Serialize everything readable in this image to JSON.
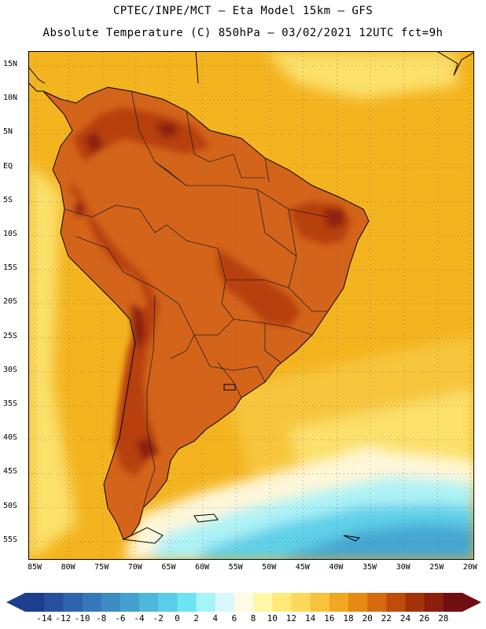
{
  "title": {
    "line1": "CPTEC/INPE/MCT –  Eta Model 15km – GFS",
    "line2": "Absolute Temperature (C) 850hPa – 03/02/2021 12UTC fct=9h"
  },
  "axes": {
    "lat_labels": [
      "15N",
      "10N",
      "5N",
      "EQ",
      "5S",
      "10S",
      "15S",
      "20S",
      "25S",
      "30S",
      "35S",
      "40S",
      "45S",
      "50S",
      "55S"
    ],
    "lon_labels": [
      "85W",
      "80W",
      "75W",
      "70W",
      "65W",
      "60W",
      "55W",
      "50W",
      "45W",
      "40W",
      "35W",
      "30W",
      "25W",
      "20W"
    ]
  },
  "colorbar": {
    "labels": [
      "-14",
      "-12",
      "-10",
      "-8",
      "-6",
      "-4",
      "-2",
      "0",
      "2",
      "4",
      "6",
      "8",
      "10",
      "12",
      "14",
      "16",
      "18",
      "20",
      "22",
      "24",
      "26",
      "28"
    ],
    "colors": [
      "#1e3f8f",
      "#27519f",
      "#2e63ad",
      "#3777b9",
      "#3d8bc4",
      "#45a0d0",
      "#4fb7dc",
      "#5acde8",
      "#6ee3f2",
      "#a6f3f8",
      "#d9f8fb",
      "#fffbe4",
      "#fff7a6",
      "#ffea7a",
      "#fcd95a",
      "#f7c23c",
      "#f0a820",
      "#e58a12",
      "#d66a0e",
      "#bf4c0b",
      "#a23208",
      "#8b1e0c",
      "#700e12"
    ]
  },
  "palette": {
    "ocean_warm": "#f4b41f",
    "ocean_mid": "#f7c63e",
    "ocean_cool": "#fbe06a",
    "land_hot": "#d4641a",
    "land_very_hot": "#b8400f",
    "land_core": "#8e220c",
    "cold_pale": "#fff7d8",
    "cold_light": "#aef2f6",
    "cold_mid": "#5ed0e8",
    "cold_deep": "#45a6d2"
  }
}
